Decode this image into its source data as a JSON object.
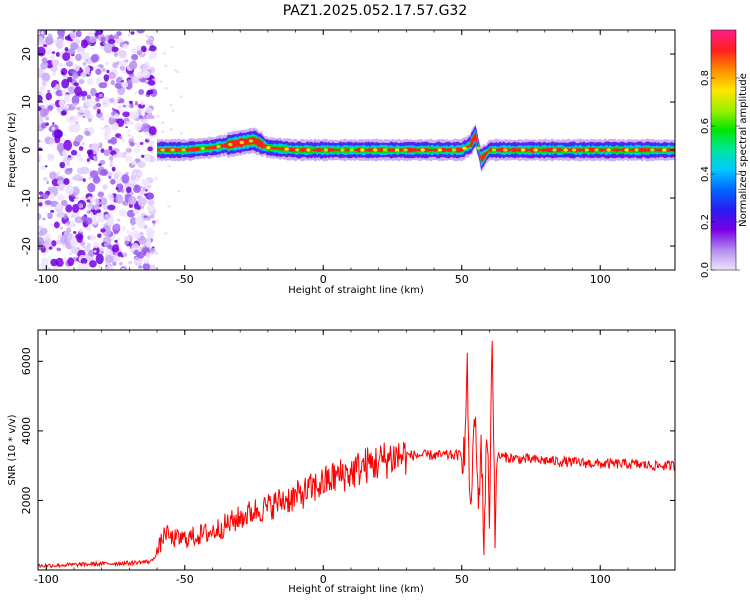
{
  "title": "PAZ1.2025.052.17.57.G32",
  "chart_data": [
    {
      "type": "heatmap",
      "xlabel": "Height of straight line (km)",
      "ylabel": "Frequency (Hz)",
      "xlim": [
        -103,
        127
      ],
      "ylim": [
        -25,
        25
      ],
      "xticks": [
        -100,
        -50,
        0,
        50,
        100
      ],
      "yticks": [
        -20,
        -10,
        0,
        10,
        20
      ],
      "colorbar": {
        "label": "Normalized spectral amplitude",
        "range": [
          0,
          1
        ],
        "ticks": [
          "0.0",
          "0.2",
          "0.4",
          "0.6",
          "0.8"
        ],
        "colormap": [
          "#f0e4ff",
          "#b48cf0",
          "#7a00e6",
          "#2a1cf0",
          "#0064ff",
          "#00c8ff",
          "#00e6a0",
          "#00e600",
          "#a0f000",
          "#ffe600",
          "#ff8c00",
          "#ff1e1e",
          "#ff1e8c"
        ]
      },
      "signal_ridge": {
        "x": [
          -60,
          -50,
          -40,
          -30,
          -25,
          -20,
          -10,
          0,
          10,
          20,
          30,
          40,
          50,
          53,
          55,
          57,
          60,
          70,
          80,
          90,
          100,
          110,
          127
        ],
        "frequency_hz": [
          0,
          0,
          0.5,
          1.5,
          2,
          0.5,
          0,
          0,
          0,
          0,
          0,
          0,
          0,
          1,
          3,
          -2,
          0,
          0,
          0,
          0,
          0,
          0,
          0
        ]
      },
      "noise_region_x": [
        -103,
        -61
      ]
    },
    {
      "type": "line",
      "xlabel": "Height of straight line (km)",
      "ylabel": "SNR (10 * v/v)",
      "xlim": [
        -103,
        127
      ],
      "ylim": [
        0,
        6900
      ],
      "xticks": [
        -100,
        -50,
        0,
        50,
        100
      ],
      "yticks": [
        2000,
        4000,
        6000
      ],
      "series": [
        {
          "color": "#ff0000",
          "x": [
            -103,
            -90,
            -80,
            -70,
            -62,
            -60,
            -58,
            -57,
            -55,
            -50,
            -45,
            -40,
            -35,
            -30,
            -25,
            -20,
            -15,
            -10,
            -5,
            0,
            5,
            10,
            15,
            20,
            25,
            30,
            35,
            40,
            45,
            50,
            51,
            52,
            53,
            54,
            55,
            56,
            57,
            58,
            59,
            60,
            61,
            62,
            63,
            65,
            70,
            80,
            90,
            100,
            110,
            120,
            127
          ],
          "y": [
            120,
            150,
            180,
            200,
            250,
            500,
            900,
            1100,
            900,
            900,
            1000,
            1100,
            1300,
            1500,
            1700,
            1800,
            2000,
            2100,
            2300,
            2500,
            2700,
            2800,
            3000,
            3100,
            3250,
            3300,
            3300,
            3300,
            3300,
            3300,
            3400,
            5700,
            1500,
            3300,
            4300,
            1600,
            3800,
            700,
            4100,
            1500,
            6900,
            1200,
            3300,
            3250,
            3200,
            3150,
            3100,
            3050,
            3050,
            3000,
            3000
          ]
        }
      ]
    }
  ]
}
